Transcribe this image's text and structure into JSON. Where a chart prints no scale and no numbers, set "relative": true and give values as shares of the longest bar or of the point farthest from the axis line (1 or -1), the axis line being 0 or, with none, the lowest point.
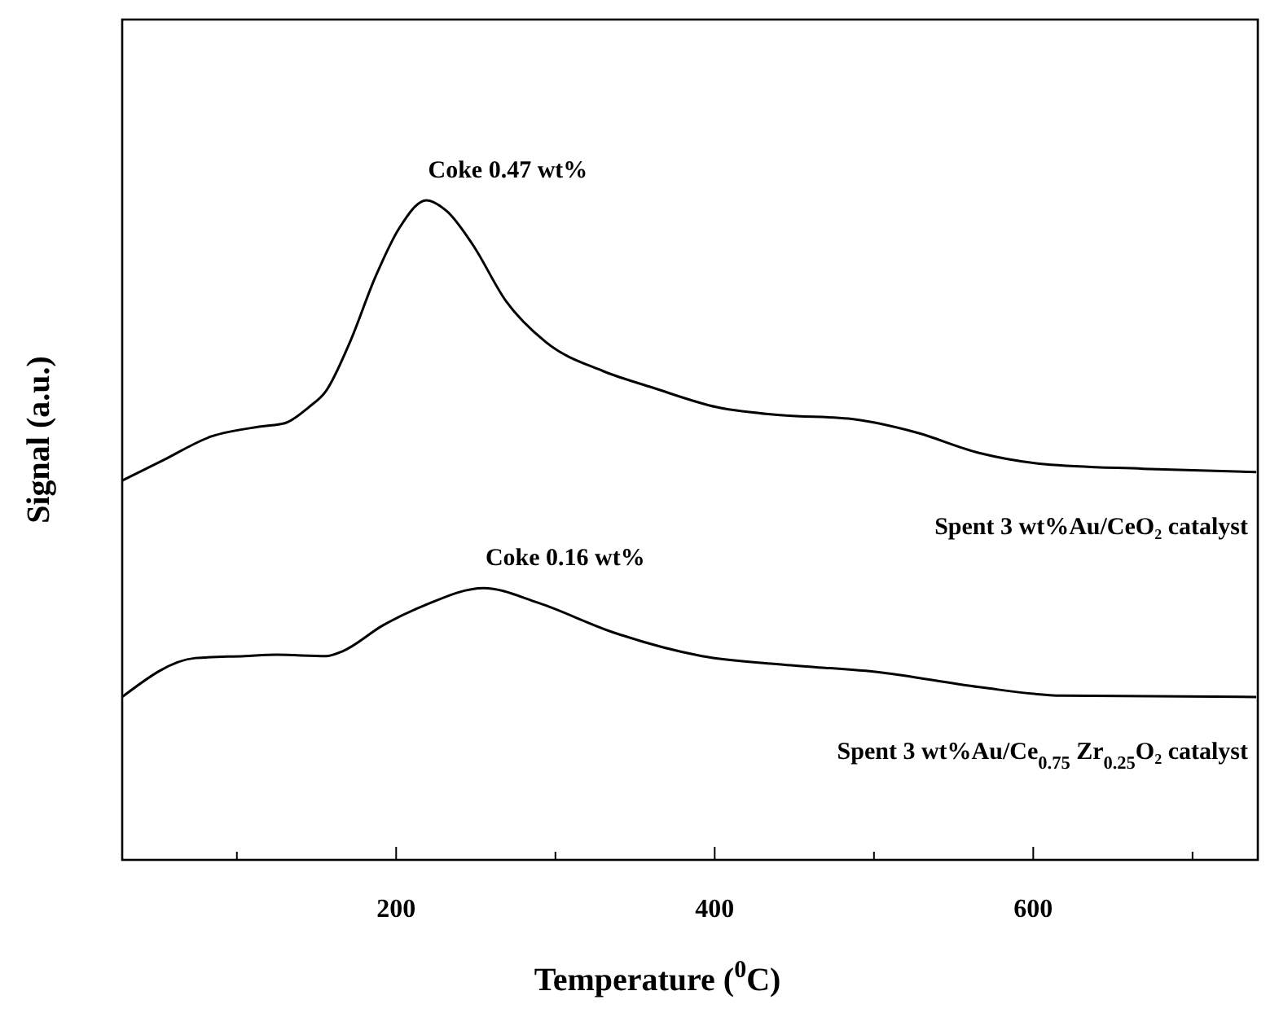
{
  "chart_data": {
    "type": "line",
    "relative": true,
    "xlabel": "Temperature ($^{0}$C)",
    "ylabel": "Signal (a.u.)",
    "xlim": [
      28,
      741
    ],
    "xticks": [
      {
        "value": 100,
        "label": null
      },
      200,
      {
        "value": 300,
        "label": null
      },
      400,
      {
        "value": 500,
        "label": null
      },
      600,
      {
        "value": 700,
        "label": null
      }
    ],
    "grid": false,
    "marker": "none",
    "line_style": "solid",
    "series": [
      {
        "name": "Spent 3 wt%Au/CeO₂ catalyst",
        "color": "#000000",
        "x": [
          28,
          53,
          84,
          115,
          130,
          145,
          156,
          171,
          187,
          202,
          219,
          232,
          248,
          269,
          294,
          330,
          361,
          402,
          443,
          484,
          525,
          566,
          607,
          669,
          740
        ],
        "values": [
          0.575,
          0.605,
          0.642,
          0.657,
          0.662,
          0.686,
          0.711,
          0.785,
          0.884,
          0.958,
          1,
          0.983,
          0.933,
          0.847,
          0.785,
          0.741,
          0.716,
          0.686,
          0.674,
          0.669,
          0.649,
          0.617,
          0.6,
          0.593,
          0.588
        ]
      },
      {
        "name": "Spent 3 wt%Au/Ce$_{0.75}$ Zr$_{0.25}$O₂ catalyst",
        "color": "#000000",
        "x": [
          28,
          74,
          105,
          125,
          156,
          166,
          192,
          217,
          255,
          289,
          335,
          392,
          443,
          505,
          566,
          618,
          740
        ],
        "values": [
          0.247,
          0.306,
          0.309,
          0.311,
          0.309,
          0.316,
          0.356,
          0.385,
          0.412,
          0.39,
          0.346,
          0.309,
          0.296,
          0.284,
          0.262,
          0.249,
          0.247
        ]
      }
    ],
    "annotations": [
      {
        "text": "Coke 0.47 wt%",
        "x": 219,
        "y": 1
      },
      {
        "text": "Coke 0.16 wt%",
        "x": 255,
        "y": 0.412
      }
    ]
  }
}
